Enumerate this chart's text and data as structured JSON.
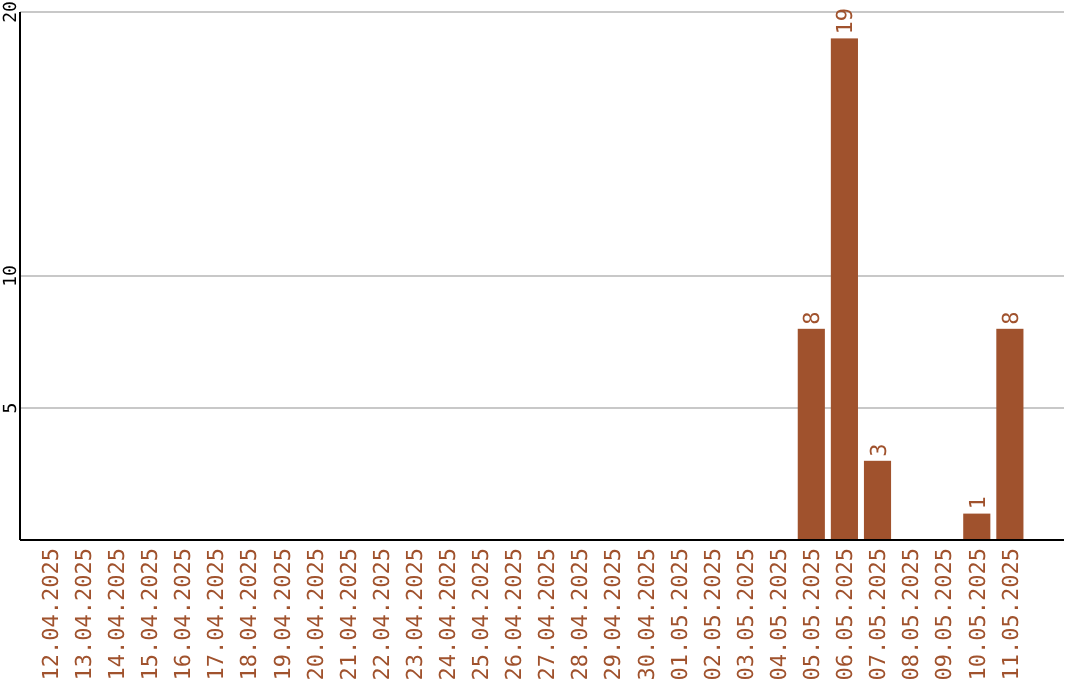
{
  "chart_data": {
    "type": "bar",
    "categories": [
      "12.04.2025",
      "13.04.2025",
      "14.04.2025",
      "15.04.2025",
      "16.04.2025",
      "17.04.2025",
      "18.04.2025",
      "19.04.2025",
      "20.04.2025",
      "21.04.2025",
      "22.04.2025",
      "23.04.2025",
      "24.04.2025",
      "25.04.2025",
      "26.04.2025",
      "27.04.2025",
      "28.04.2025",
      "29.04.2025",
      "30.04.2025",
      "01.05.2025",
      "02.05.2025",
      "03.05.2025",
      "04.05.2025",
      "05.05.2025",
      "06.05.2025",
      "07.05.2025",
      "08.05.2025",
      "09.05.2025",
      "10.05.2025",
      "11.05.2025"
    ],
    "values": [
      0,
      0,
      0,
      0,
      0,
      0,
      0,
      0,
      0,
      0,
      0,
      0,
      0,
      0,
      0,
      0,
      0,
      0,
      0,
      0,
      0,
      0,
      0,
      8,
      19,
      3,
      0,
      0,
      1,
      8
    ],
    "value_labels": [
      null,
      null,
      null,
      null,
      null,
      null,
      null,
      null,
      null,
      null,
      null,
      null,
      null,
      null,
      null,
      null,
      null,
      null,
      null,
      null,
      null,
      null,
      null,
      "8",
      "19",
      "3",
      null,
      null,
      "1",
      "8"
    ],
    "color": "#a0522d",
    "ylim": [
      0,
      20
    ],
    "yticks": [
      5,
      10,
      20
    ],
    "grid": "y"
  }
}
